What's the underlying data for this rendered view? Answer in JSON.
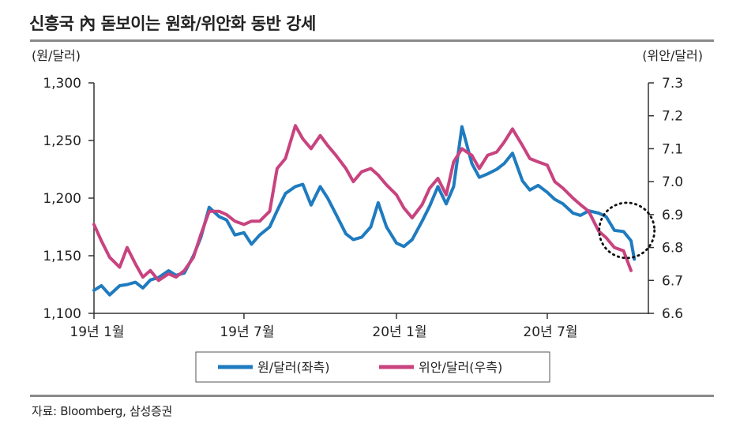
{
  "title": "신흥국 內 돋보이는 원화/위안화 동반 강세",
  "source": "자료: Bloomberg, 삼성증권",
  "chart_data": {
    "type": "line",
    "title": "신흥국 內 돋보이는 원화/위안화 동반 강세",
    "left_axis": {
      "unit": "(원/달러)",
      "ylim": [
        1100,
        1300
      ],
      "ticks": [
        1100,
        1150,
        1200,
        1250,
        1300
      ],
      "tick_labels": [
        "1,100",
        "1,150",
        "1,200",
        "1,250",
        "1,300"
      ]
    },
    "right_axis": {
      "unit": "(위안/달러)",
      "ylim": [
        6.6,
        7.3
      ],
      "ticks": [
        6.6,
        6.7,
        6.8,
        6.9,
        7.0,
        7.1,
        7.2,
        7.3
      ],
      "tick_labels": [
        "6.6",
        "6.7",
        "6.8",
        "6.9",
        "7.0",
        "7.1",
        "7.2",
        "7.3"
      ]
    },
    "x_ticks": [
      {
        "label": "19년 1월",
        "date": "2019-01-01"
      },
      {
        "label": "19년 7월",
        "date": "2019-07-01"
      },
      {
        "label": "20년 1월",
        "date": "2020-01-01"
      },
      {
        "label": "20년 7월",
        "date": "2020-07-01"
      }
    ],
    "xlim": [
      "2019-01-01",
      "2020-10-31"
    ],
    "grid": false,
    "legend_placement": "bottom-center",
    "series": [
      {
        "name": "원/달러(좌측)",
        "axis": "left",
        "color": "#1f7bbf",
        "points": [
          [
            "2019-01-01",
            1120
          ],
          [
            "2019-01-10",
            1124
          ],
          [
            "2019-01-20",
            1116
          ],
          [
            "2019-02-01",
            1124
          ],
          [
            "2019-02-10",
            1125
          ],
          [
            "2019-02-20",
            1127
          ],
          [
            "2019-03-01",
            1122
          ],
          [
            "2019-03-10",
            1129
          ],
          [
            "2019-03-20",
            1131
          ],
          [
            "2019-04-01",
            1137
          ],
          [
            "2019-04-10",
            1133
          ],
          [
            "2019-04-20",
            1135
          ],
          [
            "2019-05-01",
            1150
          ],
          [
            "2019-05-10",
            1166
          ],
          [
            "2019-05-20",
            1192
          ],
          [
            "2019-06-01",
            1184
          ],
          [
            "2019-06-10",
            1181
          ],
          [
            "2019-06-20",
            1168
          ],
          [
            "2019-07-01",
            1170
          ],
          [
            "2019-07-10",
            1160
          ],
          [
            "2019-07-20",
            1168
          ],
          [
            "2019-08-01",
            1175
          ],
          [
            "2019-08-10",
            1189
          ],
          [
            "2019-08-20",
            1204
          ],
          [
            "2019-09-01",
            1210
          ],
          [
            "2019-09-10",
            1212
          ],
          [
            "2019-09-20",
            1194
          ],
          [
            "2019-10-01",
            1210
          ],
          [
            "2019-10-10",
            1200
          ],
          [
            "2019-10-20",
            1186
          ],
          [
            "2019-11-01",
            1169
          ],
          [
            "2019-11-10",
            1164
          ],
          [
            "2019-11-20",
            1166
          ],
          [
            "2019-12-01",
            1175
          ],
          [
            "2019-12-10",
            1196
          ],
          [
            "2019-12-20",
            1175
          ],
          [
            "2020-01-01",
            1161
          ],
          [
            "2020-01-10",
            1158
          ],
          [
            "2020-01-20",
            1164
          ],
          [
            "2020-02-01",
            1180
          ],
          [
            "2020-02-10",
            1193
          ],
          [
            "2020-02-20",
            1210
          ],
          [
            "2020-03-01",
            1195
          ],
          [
            "2020-03-10",
            1210
          ],
          [
            "2020-03-20",
            1262
          ],
          [
            "2020-04-01",
            1230
          ],
          [
            "2020-04-10",
            1218
          ],
          [
            "2020-04-20",
            1221
          ],
          [
            "2020-05-01",
            1225
          ],
          [
            "2020-05-10",
            1230
          ],
          [
            "2020-05-20",
            1239
          ],
          [
            "2020-06-01",
            1215
          ],
          [
            "2020-06-10",
            1207
          ],
          [
            "2020-06-20",
            1211
          ],
          [
            "2020-07-01",
            1205
          ],
          [
            "2020-07-10",
            1199
          ],
          [
            "2020-07-20",
            1195
          ],
          [
            "2020-08-01",
            1187
          ],
          [
            "2020-08-10",
            1185
          ],
          [
            "2020-08-20",
            1189
          ],
          [
            "2020-09-01",
            1187
          ],
          [
            "2020-09-10",
            1184
          ],
          [
            "2020-09-20",
            1172
          ],
          [
            "2020-10-01",
            1171
          ],
          [
            "2020-10-10",
            1163
          ],
          [
            "2020-10-14",
            1147
          ]
        ]
      },
      {
        "name": "위안/달러(우측)",
        "axis": "right",
        "color": "#c8437f",
        "points": [
          [
            "2019-01-01",
            6.87
          ],
          [
            "2019-01-10",
            6.82
          ],
          [
            "2019-01-20",
            6.77
          ],
          [
            "2019-02-01",
            6.74
          ],
          [
            "2019-02-10",
            6.8
          ],
          [
            "2019-02-20",
            6.75
          ],
          [
            "2019-03-01",
            6.71
          ],
          [
            "2019-03-10",
            6.73
          ],
          [
            "2019-03-20",
            6.7
          ],
          [
            "2019-04-01",
            6.72
          ],
          [
            "2019-04-10",
            6.71
          ],
          [
            "2019-04-20",
            6.73
          ],
          [
            "2019-05-01",
            6.77
          ],
          [
            "2019-05-10",
            6.84
          ],
          [
            "2019-05-20",
            6.91
          ],
          [
            "2019-06-01",
            6.91
          ],
          [
            "2019-06-10",
            6.9
          ],
          [
            "2019-06-20",
            6.88
          ],
          [
            "2019-07-01",
            6.87
          ],
          [
            "2019-07-10",
            6.88
          ],
          [
            "2019-07-20",
            6.88
          ],
          [
            "2019-08-01",
            6.91
          ],
          [
            "2019-08-10",
            7.04
          ],
          [
            "2019-08-20",
            7.07
          ],
          [
            "2019-09-01",
            7.17
          ],
          [
            "2019-09-10",
            7.13
          ],
          [
            "2019-09-20",
            7.1
          ],
          [
            "2019-10-01",
            7.14
          ],
          [
            "2019-10-10",
            7.11
          ],
          [
            "2019-10-20",
            7.08
          ],
          [
            "2019-11-01",
            7.04
          ],
          [
            "2019-11-10",
            7.0
          ],
          [
            "2019-11-20",
            7.03
          ],
          [
            "2019-12-01",
            7.04
          ],
          [
            "2019-12-10",
            7.02
          ],
          [
            "2019-12-20",
            6.99
          ],
          [
            "2020-01-01",
            6.96
          ],
          [
            "2020-01-10",
            6.92
          ],
          [
            "2020-01-20",
            6.89
          ],
          [
            "2020-02-01",
            6.93
          ],
          [
            "2020-02-10",
            6.98
          ],
          [
            "2020-02-20",
            7.01
          ],
          [
            "2020-03-01",
            6.96
          ],
          [
            "2020-03-10",
            7.06
          ],
          [
            "2020-03-20",
            7.1
          ],
          [
            "2020-04-01",
            7.08
          ],
          [
            "2020-04-10",
            7.04
          ],
          [
            "2020-04-20",
            7.08
          ],
          [
            "2020-05-01",
            7.09
          ],
          [
            "2020-05-10",
            7.12
          ],
          [
            "2020-05-20",
            7.16
          ],
          [
            "2020-06-01",
            7.11
          ],
          [
            "2020-06-10",
            7.07
          ],
          [
            "2020-06-20",
            7.06
          ],
          [
            "2020-07-01",
            7.05
          ],
          [
            "2020-07-10",
            7.0
          ],
          [
            "2020-07-20",
            6.98
          ],
          [
            "2020-08-01",
            6.95
          ],
          [
            "2020-08-10",
            6.93
          ],
          [
            "2020-08-20",
            6.91
          ],
          [
            "2020-09-01",
            6.85
          ],
          [
            "2020-09-10",
            6.83
          ],
          [
            "2020-09-20",
            6.8
          ],
          [
            "2020-10-01",
            6.79
          ],
          [
            "2020-10-10",
            6.73
          ]
        ]
      }
    ],
    "annotation": {
      "type": "dotted-circle",
      "target": "2020년 10월 급락 구간",
      "center_date": "2020-10-05",
      "center_value_left": 1172
    }
  }
}
